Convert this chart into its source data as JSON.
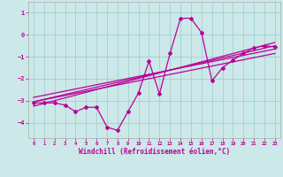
{
  "xlabel": "Windchill (Refroidissement éolien,°C)",
  "ylabel": "",
  "bg_color": "#cce8e8",
  "grid_color": "#99cccc",
  "line_color": "#bb0099",
  "xlim": [
    -0.5,
    23.5
  ],
  "ylim": [
    -4.7,
    1.5
  ],
  "xticks": [
    0,
    1,
    2,
    3,
    4,
    5,
    6,
    7,
    8,
    9,
    10,
    11,
    12,
    13,
    14,
    15,
    16,
    17,
    18,
    19,
    20,
    21,
    22,
    23
  ],
  "yticks": [
    -4,
    -3,
    -2,
    -1,
    0,
    1
  ],
  "scatter_x": [
    0,
    1,
    2,
    3,
    4,
    5,
    6,
    7,
    8,
    9,
    10,
    11,
    12,
    13,
    14,
    15,
    16,
    17,
    18,
    19,
    20,
    21,
    22,
    23
  ],
  "scatter_y": [
    -3.1,
    -3.1,
    -3.1,
    -3.2,
    -3.5,
    -3.3,
    -3.3,
    -4.2,
    -4.35,
    -3.5,
    -2.65,
    -1.2,
    -2.7,
    -0.85,
    0.75,
    0.75,
    0.1,
    -2.1,
    -1.5,
    -1.15,
    -0.85,
    -0.6,
    -0.5,
    -0.55
  ],
  "reg_lines": [
    {
      "x0": 0,
      "y0": -3.05,
      "x1": 23,
      "y1": -0.5
    },
    {
      "x0": 0,
      "y0": -3.25,
      "x1": 23,
      "y1": -0.35
    },
    {
      "x0": 0,
      "y0": -2.85,
      "x1": 23,
      "y1": -0.65
    },
    {
      "x0": 0,
      "y0": -3.05,
      "x1": 23,
      "y1": -0.85
    }
  ]
}
